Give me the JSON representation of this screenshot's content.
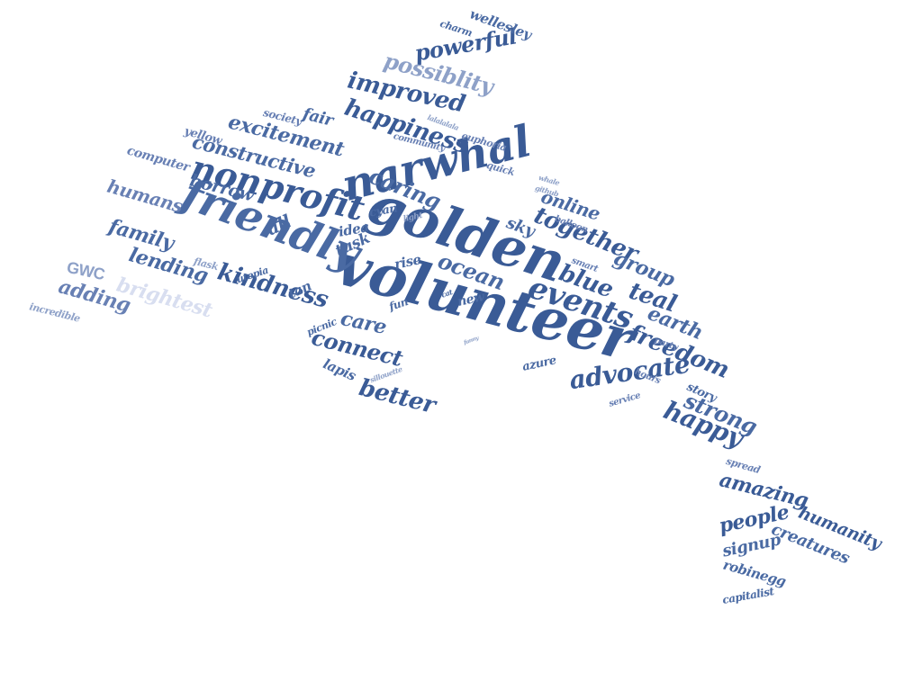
{
  "words": [
    "volunteer",
    "golden",
    "narwhal",
    "friendly",
    "nonprofit",
    "events",
    "kindness",
    "happiness",
    "excitement",
    "constructive",
    "improved",
    "powerful",
    "possiblity",
    "wellesley",
    "charm",
    "together",
    "online",
    "caring",
    "blue",
    "ocean",
    "teal",
    "group",
    "earth",
    "freedom",
    "advocate",
    "strong",
    "happy",
    "better",
    "connect",
    "care",
    "all",
    "idea",
    "tusk",
    "cyan",
    "sky",
    "rise",
    "tan",
    "utopia",
    "fun",
    "new",
    "cat",
    "picnic",
    "lapis",
    "sillouette",
    "borrow",
    "humans",
    "family",
    "lending",
    "adding",
    "brightest",
    "GWC",
    "incredible",
    "flask",
    "yellow",
    "computer",
    "society",
    "fair",
    "community",
    "lalalalala",
    "euphoria",
    "quick",
    "whale",
    "github",
    "light",
    "balloon",
    "smart",
    "party",
    "azure",
    "hours",
    "story",
    "service",
    "spread",
    "amazing",
    "people",
    "humanity",
    "creatures",
    "signup",
    "robinegg",
    "capitalist",
    "funny"
  ],
  "colors": {
    "dark": "#3a5b96",
    "mid": "#4a6aa3",
    "light": "#6880b4",
    "pale": "#8ea1c8",
    "faint": "#b8c3de"
  }
}
